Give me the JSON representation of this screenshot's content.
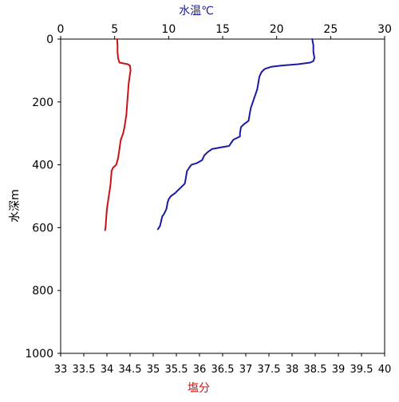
{
  "chart_data": {
    "type": "line",
    "top_axis": {
      "label": "水温℃",
      "label_color": "#1a1aa6",
      "range": [
        0,
        30
      ],
      "ticks": [
        "0",
        "5",
        "10",
        "15",
        "20",
        "25",
        "30"
      ],
      "tick_values": [
        0,
        5,
        10,
        15,
        20,
        25,
        30
      ]
    },
    "bottom_axis": {
      "label": "塩分",
      "label_color": "#cc1111",
      "range": [
        33,
        40
      ],
      "ticks": [
        "33",
        "33.5",
        "34",
        "34.5",
        "35",
        "35.5",
        "36",
        "36.5",
        "37",
        "37.5",
        "38",
        "38.5",
        "39",
        "39.5",
        "40"
      ],
      "tick_values": [
        33,
        33.5,
        34,
        34.5,
        35,
        35.5,
        36,
        36.5,
        37,
        37.5,
        38,
        38.5,
        39,
        39.5,
        40
      ]
    },
    "left_axis": {
      "label": "水深m",
      "range": [
        0,
        1000
      ],
      "inverted": true,
      "ticks": [
        "0",
        "200",
        "400",
        "600",
        "800",
        "1000"
      ],
      "tick_values": [
        0,
        200,
        400,
        600,
        800,
        1000
      ]
    },
    "grid": false,
    "series": [
      {
        "axis": "top",
        "color": "#1a1aa6",
        "points": [
          [
            23.3,
            0
          ],
          [
            23.4,
            20
          ],
          [
            23.4,
            40
          ],
          [
            23.5,
            60
          ],
          [
            23.4,
            70
          ],
          [
            23.1,
            75
          ],
          [
            22.0,
            80
          ],
          [
            20.5,
            84
          ],
          [
            19.5,
            88
          ],
          [
            18.9,
            95
          ],
          [
            18.6,
            105
          ],
          [
            18.4,
            120
          ],
          [
            18.3,
            140
          ],
          [
            18.2,
            160
          ],
          [
            18.0,
            180
          ],
          [
            17.8,
            200
          ],
          [
            17.6,
            220
          ],
          [
            17.5,
            240
          ],
          [
            17.4,
            260
          ],
          [
            17.0,
            270
          ],
          [
            16.7,
            280
          ],
          [
            16.6,
            300
          ],
          [
            16.6,
            310
          ],
          [
            16.0,
            320
          ],
          [
            15.8,
            330
          ],
          [
            15.6,
            340
          ],
          [
            14.8,
            345
          ],
          [
            14.0,
            350
          ],
          [
            13.6,
            360
          ],
          [
            13.3,
            370
          ],
          [
            13.1,
            385
          ],
          [
            12.6,
            395
          ],
          [
            12.1,
            400
          ],
          [
            11.9,
            410
          ],
          [
            11.7,
            420
          ],
          [
            11.6,
            440
          ],
          [
            11.5,
            460
          ],
          [
            11.2,
            470
          ],
          [
            10.9,
            480
          ],
          [
            10.6,
            490
          ],
          [
            10.2,
            500
          ],
          [
            10.0,
            510
          ],
          [
            9.9,
            520
          ],
          [
            9.8,
            540
          ],
          [
            9.6,
            555
          ],
          [
            9.4,
            565
          ],
          [
            9.3,
            580
          ],
          [
            9.2,
            595
          ],
          [
            9.0,
            605
          ]
        ]
      },
      {
        "axis": "bottom",
        "color": "#cc1111",
        "points": [
          [
            34.22,
            0
          ],
          [
            34.23,
            20
          ],
          [
            34.23,
            40
          ],
          [
            34.24,
            60
          ],
          [
            34.27,
            75
          ],
          [
            34.45,
            80
          ],
          [
            34.5,
            85
          ],
          [
            34.51,
            100
          ],
          [
            34.49,
            120
          ],
          [
            34.47,
            140
          ],
          [
            34.46,
            160
          ],
          [
            34.45,
            180
          ],
          [
            34.44,
            200
          ],
          [
            34.43,
            220
          ],
          [
            34.42,
            240
          ],
          [
            34.4,
            260
          ],
          [
            34.38,
            280
          ],
          [
            34.35,
            300
          ],
          [
            34.3,
            320
          ],
          [
            34.28,
            340
          ],
          [
            34.26,
            360
          ],
          [
            34.24,
            380
          ],
          [
            34.2,
            400
          ],
          [
            34.13,
            410
          ],
          [
            34.1,
            420
          ],
          [
            34.09,
            440
          ],
          [
            34.08,
            460
          ],
          [
            34.06,
            480
          ],
          [
            34.04,
            500
          ],
          [
            34.02,
            520
          ],
          [
            34.0,
            540
          ],
          [
            33.99,
            560
          ],
          [
            33.98,
            580
          ],
          [
            33.97,
            600
          ],
          [
            33.96,
            608
          ]
        ]
      }
    ]
  }
}
